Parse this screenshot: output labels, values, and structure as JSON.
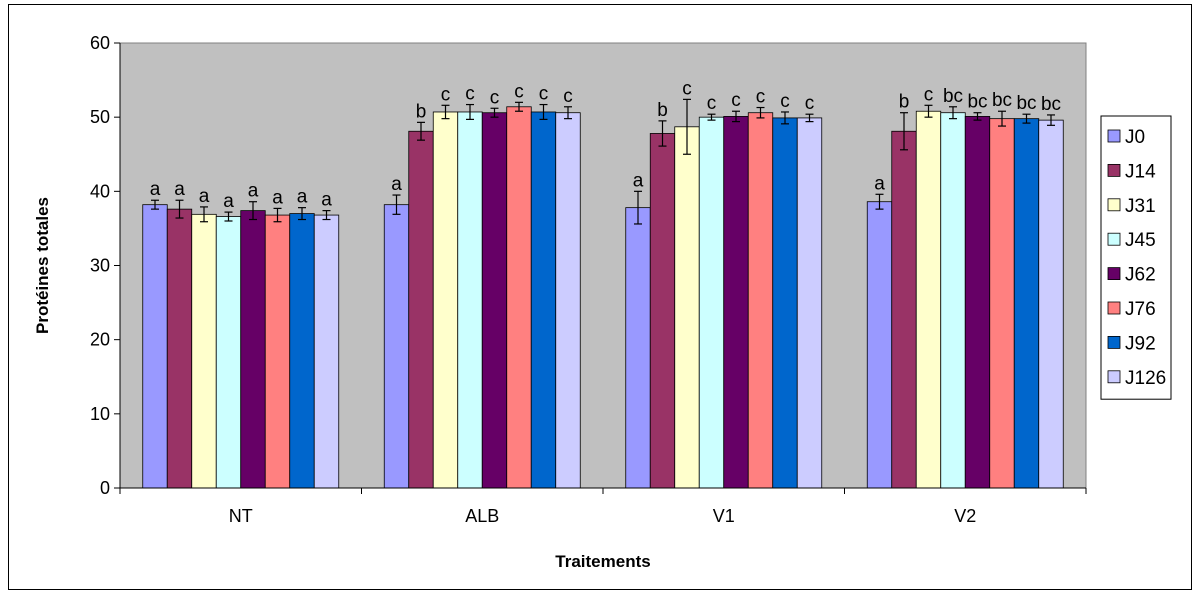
{
  "chart_data": {
    "type": "bar",
    "title": "",
    "xlabel": "Traitements",
    "ylabel": "Protéines totales",
    "ylim": [
      0,
      60
    ],
    "yticks": [
      "0",
      "10",
      "20",
      "30",
      "40",
      "50",
      "60"
    ],
    "categories": [
      "NT",
      "ALB",
      "V1",
      "V2"
    ],
    "grid": false,
    "legend_position": "right",
    "plot_background": "#c0c0c0",
    "series": [
      {
        "name": "J0",
        "color": "#9999ff",
        "values": [
          38.2,
          38.2,
          37.8,
          38.6
        ],
        "errors": [
          0.6,
          1.3,
          2.2,
          1.0
        ],
        "labels": [
          "a",
          "a",
          "a",
          "a"
        ]
      },
      {
        "name": "J14",
        "color": "#993366",
        "values": [
          37.6,
          48.1,
          47.8,
          48.1
        ],
        "errors": [
          1.2,
          1.2,
          1.7,
          2.5
        ],
        "labels": [
          "a",
          "b",
          "b",
          "b"
        ]
      },
      {
        "name": "J31",
        "color": "#ffffcc",
        "values": [
          36.9,
          50.7,
          48.7,
          50.8
        ],
        "errors": [
          1.0,
          0.9,
          3.7,
          0.8
        ],
        "labels": [
          "a",
          "c",
          "c",
          "c"
        ]
      },
      {
        "name": "J45",
        "color": "#ccffff",
        "values": [
          36.6,
          50.7,
          50.0,
          50.6
        ],
        "errors": [
          0.6,
          1.0,
          0.4,
          0.8
        ],
        "labels": [
          "a",
          "c",
          "c",
          "bc"
        ]
      },
      {
        "name": "J62",
        "color": "#660066",
        "values": [
          37.4,
          50.6,
          50.1,
          50.1
        ],
        "errors": [
          1.2,
          0.6,
          0.7,
          0.5
        ],
        "labels": [
          "a",
          "c",
          "c",
          "bc"
        ]
      },
      {
        "name": "J76",
        "color": "#ff8080",
        "values": [
          36.8,
          51.4,
          50.6,
          49.8
        ],
        "errors": [
          0.9,
          0.6,
          0.7,
          1.0
        ],
        "labels": [
          "a",
          "c",
          "c",
          "bc"
        ]
      },
      {
        "name": "J92",
        "color": "#0066cc",
        "values": [
          37.0,
          50.7,
          49.9,
          49.8
        ],
        "errors": [
          0.8,
          1.0,
          0.8,
          0.6
        ],
        "labels": [
          "a",
          "c",
          "c",
          "bc"
        ]
      },
      {
        "name": "J126",
        "color": "#ccccff",
        "values": [
          36.8,
          50.6,
          49.9,
          49.6
        ],
        "errors": [
          0.6,
          0.8,
          0.5,
          0.7
        ],
        "labels": [
          "a",
          "c",
          "c",
          "bc"
        ]
      }
    ]
  }
}
